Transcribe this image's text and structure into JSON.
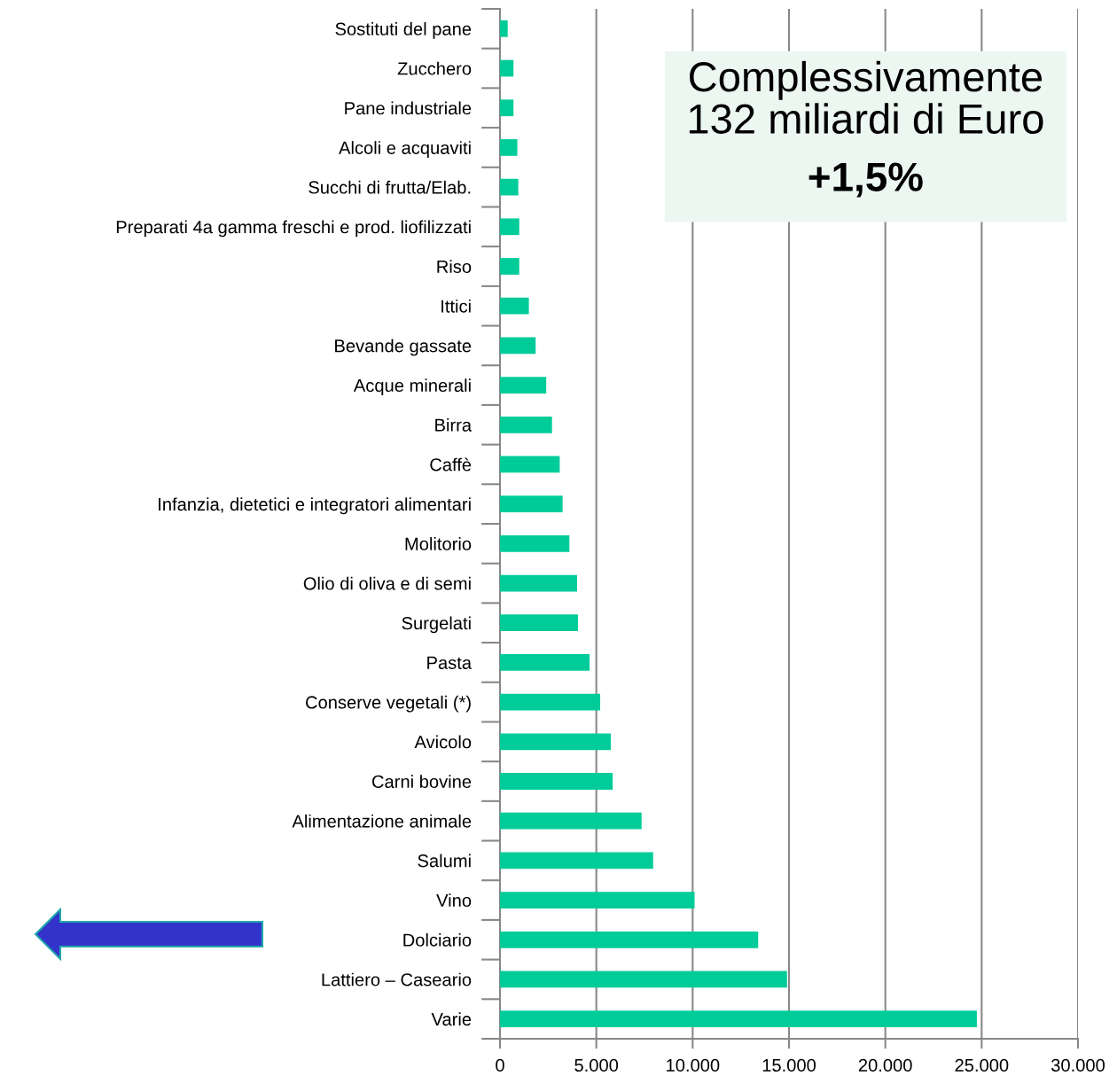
{
  "chart_data": {
    "type": "bar",
    "orientation": "horizontal",
    "color": "#00cc99",
    "categories": [
      "Sostituti del pane",
      "Zucchero",
      "Pane industriale",
      "Alcoli e acquaviti",
      "Succhi di frutta/Elab.",
      "Preparati 4a gamma freschi e prod. liofilizzati",
      "Riso",
      "Ittici",
      "Bevande gassate",
      "Acque minerali",
      "Birra",
      "Caffè",
      "Infanzia, dietetici e integratori alimentari",
      "Molitorio",
      "Olio di oliva e di semi",
      "Surgelati",
      "Pasta",
      "Conserve vegetali (*)",
      "Avicolo",
      "Carni bovine",
      "Alimentazione animale",
      "Salumi",
      "Vino",
      "Dolciario",
      "Lattiero – Caseario",
      "Varie"
    ],
    "values": [
      400,
      700,
      700,
      900,
      950,
      1000,
      1000,
      1500,
      1850,
      2400,
      2700,
      3100,
      3250,
      3600,
      4000,
      4050,
      4650,
      5200,
      5750,
      5850,
      7350,
      7950,
      10100,
      13400,
      14900,
      24750
    ],
    "xlim": [
      0,
      30000
    ],
    "xticks": [
      0,
      {
        "value": 5000,
        "label": "5.000"
      },
      {
        "value": 10000,
        "label": "10.000"
      },
      {
        "value": 15000,
        "label": "15.000"
      },
      {
        "value": 20000,
        "label": "20.000"
      },
      {
        "value": 25000,
        "label": "25.000"
      },
      {
        "value": 30000,
        "label": "30.000"
      }
    ],
    "grid": "x",
    "legend": false,
    "annotations": [
      "Complessivamente\n132 miliardi di Euro",
      "+1,5%"
    ]
  }
}
